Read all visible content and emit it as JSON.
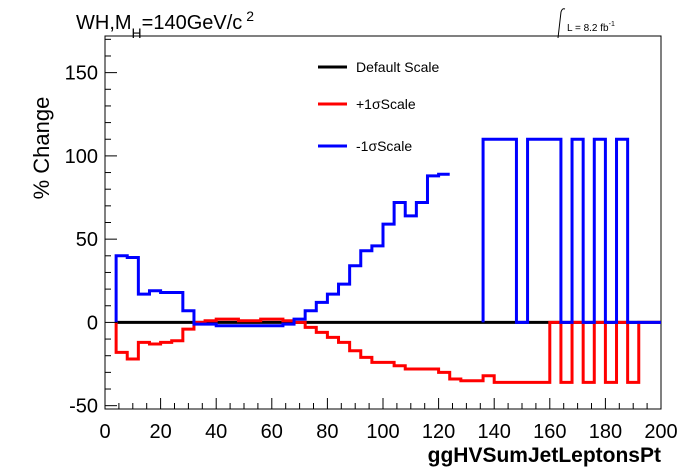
{
  "chart_data": {
    "type": "line",
    "title": "WH,M_H=140GeV/c^2",
    "title_parts": {
      "main": "WH,M",
      "sub": "H",
      "rest": "=140GeV/c",
      "sup": "2"
    },
    "lumi": {
      "text": "L = 8.2 fb",
      "sup": "-1"
    },
    "xlabel": "ggHVSumJetLeptonsPt",
    "ylabel": "% Change",
    "xlim": [
      0,
      200
    ],
    "ylim": [
      -52,
      172
    ],
    "xticks": [
      0,
      20,
      40,
      60,
      80,
      100,
      120,
      140,
      160,
      180,
      200
    ],
    "yticks": [
      -50,
      0,
      50,
      100,
      150
    ],
    "legend_position": "top-center",
    "grid": false,
    "bin_edges": [
      4,
      8,
      12,
      16,
      20,
      24,
      28,
      32,
      36,
      40,
      44,
      48,
      52,
      56,
      60,
      64,
      68,
      72,
      76,
      80,
      84,
      88,
      92,
      96,
      100,
      104,
      108,
      112,
      116,
      120,
      124,
      128,
      132,
      136,
      140,
      144,
      148,
      152,
      156,
      160,
      164,
      168,
      172,
      176,
      180,
      184,
      188,
      192,
      196,
      200
    ],
    "series": [
      {
        "name": "Default Scale",
        "color": "#000000",
        "values": [
          0,
          0,
          0,
          0,
          0,
          0,
          0,
          0,
          0,
          0,
          0,
          0,
          0,
          0,
          0,
          0,
          0,
          0,
          0,
          0,
          0,
          0,
          0,
          0,
          0,
          0,
          0,
          0,
          0,
          0,
          0,
          0,
          0,
          0,
          0,
          0,
          0,
          0,
          0,
          0,
          0,
          0,
          0,
          0,
          0,
          0,
          0,
          0,
          0
        ]
      },
      {
        "name": "+1σScale",
        "color": "#ff0000",
        "values": [
          -18,
          -22,
          -12,
          -13,
          -12,
          -11,
          -4,
          0,
          1,
          2,
          2,
          1,
          1,
          2,
          2,
          1,
          0,
          -3,
          -6,
          -9,
          -12,
          -17,
          -21,
          -24,
          -24,
          -26,
          -28,
          -28,
          -28,
          -30,
          -34,
          -35,
          -35,
          -32,
          -36,
          -36,
          -36,
          -36,
          -36,
          0,
          -36,
          0,
          -36,
          0,
          -36,
          0,
          -36,
          0,
          0
        ]
      },
      {
        "name": "-1σScale",
        "color": "#0000ff",
        "values": [
          40,
          39,
          17,
          19,
          18,
          18,
          7,
          -1,
          -1,
          -2,
          -2,
          -2,
          -2,
          -2,
          -2,
          -1,
          2,
          7,
          12,
          17,
          23,
          34,
          43,
          46,
          59,
          72,
          64,
          72,
          88,
          89,
          null,
          null,
          null,
          110,
          110,
          110,
          0,
          110,
          110,
          110,
          0,
          110,
          0,
          110,
          0,
          110,
          0,
          0,
          0
        ]
      }
    ]
  }
}
